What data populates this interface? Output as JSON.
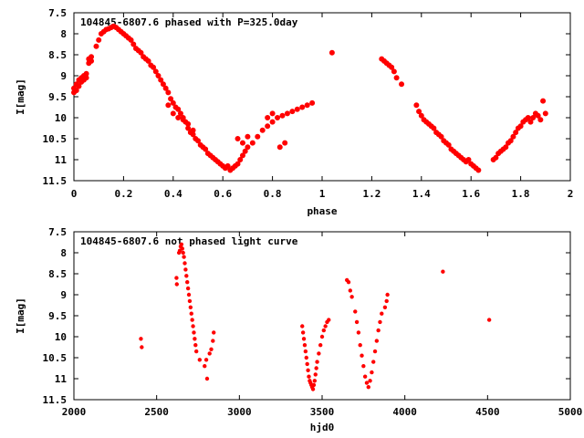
{
  "chart_data": [
    {
      "type": "scatter",
      "title": "104845-6807.6 phased with P=325.0day",
      "xlabel": "phase",
      "ylabel": "I[mag]",
      "xlim": [
        0,
        2
      ],
      "ylim": [
        7.5,
        11.5
      ],
      "y_inverted": true,
      "xticks": [
        "0",
        "0.2",
        "0.4",
        "0.6",
        "0.8",
        "1",
        "1.2",
        "1.4",
        "1.6",
        "1.8",
        "2"
      ],
      "yticks": [
        "7.5",
        "8",
        "8.5",
        "9",
        "9.5",
        "10",
        "10.5",
        "11",
        "11.5"
      ],
      "marker_color": "#ff0000",
      "points": [
        [
          0.0,
          9.4
        ],
        [
          0.0,
          9.3
        ],
        [
          0.01,
          9.2
        ],
        [
          0.01,
          9.35
        ],
        [
          0.02,
          9.1
        ],
        [
          0.02,
          9.25
        ],
        [
          0.03,
          9.05
        ],
        [
          0.03,
          9.15
        ],
        [
          0.04,
          9.0
        ],
        [
          0.04,
          9.1
        ],
        [
          0.05,
          8.95
        ],
        [
          0.05,
          9.05
        ],
        [
          0.06,
          8.7
        ],
        [
          0.06,
          8.6
        ],
        [
          0.07,
          8.55
        ],
        [
          0.07,
          8.65
        ],
        [
          0.09,
          8.3
        ],
        [
          0.1,
          8.15
        ],
        [
          0.11,
          8.0
        ],
        [
          0.12,
          7.95
        ],
        [
          0.13,
          7.9
        ],
        [
          0.14,
          7.88
        ],
        [
          0.15,
          7.85
        ],
        [
          0.16,
          7.82
        ],
        [
          0.17,
          7.85
        ],
        [
          0.18,
          7.9
        ],
        [
          0.19,
          7.95
        ],
        [
          0.2,
          8.0
        ],
        [
          0.21,
          8.05
        ],
        [
          0.22,
          8.1
        ],
        [
          0.23,
          8.15
        ],
        [
          0.24,
          8.25
        ],
        [
          0.25,
          8.35
        ],
        [
          0.26,
          8.4
        ],
        [
          0.27,
          8.45
        ],
        [
          0.28,
          8.55
        ],
        [
          0.29,
          8.6
        ],
        [
          0.3,
          8.65
        ],
        [
          0.31,
          8.75
        ],
        [
          0.32,
          8.8
        ],
        [
          0.33,
          8.9
        ],
        [
          0.34,
          9.0
        ],
        [
          0.35,
          9.1
        ],
        [
          0.36,
          9.2
        ],
        [
          0.37,
          9.3
        ],
        [
          0.38,
          9.4
        ],
        [
          0.39,
          9.55
        ],
        [
          0.4,
          9.65
        ],
        [
          0.41,
          9.75
        ],
        [
          0.42,
          9.8
        ],
        [
          0.43,
          9.9
        ],
        [
          0.44,
          10.0
        ],
        [
          0.45,
          10.1
        ],
        [
          0.46,
          10.25
        ],
        [
          0.47,
          10.35
        ],
        [
          0.48,
          10.4
        ],
        [
          0.49,
          10.5
        ],
        [
          0.5,
          10.55
        ],
        [
          0.51,
          10.65
        ],
        [
          0.52,
          10.7
        ],
        [
          0.53,
          10.75
        ],
        [
          0.54,
          10.85
        ],
        [
          0.55,
          10.9
        ],
        [
          0.56,
          10.95
        ],
        [
          0.57,
          11.0
        ],
        [
          0.58,
          11.05
        ],
        [
          0.59,
          11.1
        ],
        [
          0.6,
          11.15
        ],
        [
          0.61,
          11.2
        ],
        [
          0.62,
          11.15
        ],
        [
          0.63,
          11.25
        ],
        [
          0.64,
          11.2
        ],
        [
          0.65,
          11.15
        ],
        [
          0.66,
          11.1
        ],
        [
          0.67,
          11.0
        ],
        [
          0.68,
          10.9
        ],
        [
          0.69,
          10.8
        ],
        [
          0.7,
          10.7
        ],
        [
          0.72,
          10.6
        ],
        [
          0.74,
          10.45
        ],
        [
          0.76,
          10.3
        ],
        [
          0.78,
          10.2
        ],
        [
          0.8,
          10.1
        ],
        [
          0.82,
          10.0
        ],
        [
          0.84,
          9.95
        ],
        [
          0.86,
          9.9
        ],
        [
          0.88,
          9.85
        ],
        [
          0.9,
          9.8
        ],
        [
          0.92,
          9.75
        ],
        [
          0.94,
          9.7
        ],
        [
          0.96,
          9.65
        ],
        [
          0.38,
          9.7
        ],
        [
          0.4,
          9.9
        ],
        [
          0.42,
          10.0
        ],
        [
          0.44,
          10.05
        ],
        [
          0.46,
          10.15
        ],
        [
          0.48,
          10.3
        ],
        [
          0.66,
          10.5
        ],
        [
          0.68,
          10.6
        ],
        [
          0.7,
          10.45
        ],
        [
          0.78,
          10.0
        ],
        [
          0.8,
          9.9
        ],
        [
          0.83,
          10.7
        ],
        [
          0.85,
          10.6
        ],
        [
          1.04,
          8.45
        ],
        [
          1.24,
          8.6
        ],
        [
          1.25,
          8.65
        ],
        [
          1.26,
          8.7
        ],
        [
          1.27,
          8.75
        ],
        [
          1.28,
          8.8
        ],
        [
          1.29,
          8.9
        ],
        [
          1.3,
          9.05
        ],
        [
          1.32,
          9.2
        ],
        [
          1.38,
          9.7
        ],
        [
          1.39,
          9.85
        ],
        [
          1.4,
          9.95
        ],
        [
          1.41,
          10.05
        ],
        [
          1.42,
          10.1
        ],
        [
          1.43,
          10.15
        ],
        [
          1.44,
          10.2
        ],
        [
          1.45,
          10.25
        ],
        [
          1.46,
          10.35
        ],
        [
          1.47,
          10.4
        ],
        [
          1.48,
          10.45
        ],
        [
          1.49,
          10.55
        ],
        [
          1.5,
          10.6
        ],
        [
          1.51,
          10.65
        ],
        [
          1.52,
          10.75
        ],
        [
          1.53,
          10.8
        ],
        [
          1.54,
          10.85
        ],
        [
          1.55,
          10.9
        ],
        [
          1.56,
          10.95
        ],
        [
          1.57,
          11.0
        ],
        [
          1.58,
          11.05
        ],
        [
          1.59,
          11.0
        ],
        [
          1.6,
          11.1
        ],
        [
          1.61,
          11.15
        ],
        [
          1.62,
          11.2
        ],
        [
          1.63,
          11.25
        ],
        [
          1.69,
          11.0
        ],
        [
          1.7,
          10.95
        ],
        [
          1.71,
          10.85
        ],
        [
          1.72,
          10.8
        ],
        [
          1.73,
          10.75
        ],
        [
          1.74,
          10.7
        ],
        [
          1.75,
          10.6
        ],
        [
          1.76,
          10.55
        ],
        [
          1.77,
          10.45
        ],
        [
          1.78,
          10.35
        ],
        [
          1.79,
          10.25
        ],
        [
          1.8,
          10.2
        ],
        [
          1.81,
          10.1
        ],
        [
          1.82,
          10.05
        ],
        [
          1.83,
          10.0
        ],
        [
          1.84,
          10.1
        ],
        [
          1.85,
          10.0
        ],
        [
          1.86,
          9.9
        ],
        [
          1.87,
          9.95
        ],
        [
          1.88,
          10.05
        ],
        [
          1.89,
          9.6
        ],
        [
          1.9,
          9.9
        ]
      ]
    },
    {
      "type": "scatter",
      "title": "104845-6807.6 not phased light curve",
      "xlabel": "hjd0",
      "ylabel": "I[mag]",
      "xlim": [
        2000,
        5000
      ],
      "ylim": [
        7.5,
        11.5
      ],
      "y_inverted": true,
      "xticks": [
        "2000",
        "2500",
        "3000",
        "3500",
        "4000",
        "4500",
        "5000"
      ],
      "yticks": [
        "7.5",
        "8",
        "8.5",
        "9",
        "9.5",
        "10",
        "10.5",
        "11",
        "11.5"
      ],
      "marker_color": "#ff0000",
      "points": [
        [
          2405,
          10.05
        ],
        [
          2410,
          10.25
        ],
        [
          2620,
          8.6
        ],
        [
          2622,
          8.75
        ],
        [
          2635,
          8.0
        ],
        [
          2640,
          7.95
        ],
        [
          2645,
          7.85
        ],
        [
          2650,
          7.8
        ],
        [
          2655,
          7.9
        ],
        [
          2660,
          8.0
        ],
        [
          2665,
          8.1
        ],
        [
          2670,
          8.25
        ],
        [
          2675,
          8.4
        ],
        [
          2680,
          8.55
        ],
        [
          2685,
          8.7
        ],
        [
          2690,
          8.85
        ],
        [
          2695,
          9.0
        ],
        [
          2700,
          9.15
        ],
        [
          2705,
          9.3
        ],
        [
          2710,
          9.45
        ],
        [
          2715,
          9.6
        ],
        [
          2720,
          9.75
        ],
        [
          2725,
          9.9
        ],
        [
          2730,
          10.05
        ],
        [
          2735,
          10.2
        ],
        [
          2740,
          10.35
        ],
        [
          2760,
          10.55
        ],
        [
          2790,
          10.7
        ],
        [
          2800,
          10.55
        ],
        [
          2805,
          11.0
        ],
        [
          2820,
          10.4
        ],
        [
          2830,
          10.3
        ],
        [
          2840,
          10.1
        ],
        [
          2845,
          9.9
        ],
        [
          3380,
          9.75
        ],
        [
          3385,
          9.9
        ],
        [
          3390,
          10.05
        ],
        [
          3395,
          10.2
        ],
        [
          3400,
          10.35
        ],
        [
          3405,
          10.5
        ],
        [
          3410,
          10.65
        ],
        [
          3415,
          10.8
        ],
        [
          3420,
          10.95
        ],
        [
          3425,
          11.05
        ],
        [
          3430,
          11.1
        ],
        [
          3435,
          11.15
        ],
        [
          3440,
          11.2
        ],
        [
          3445,
          11.25
        ],
        [
          3450,
          11.15
        ],
        [
          3455,
          11.05
        ],
        [
          3460,
          10.9
        ],
        [
          3465,
          10.75
        ],
        [
          3470,
          10.6
        ],
        [
          3480,
          10.4
        ],
        [
          3490,
          10.2
        ],
        [
          3500,
          10.0
        ],
        [
          3510,
          9.85
        ],
        [
          3520,
          9.75
        ],
        [
          3530,
          9.65
        ],
        [
          3540,
          9.6
        ],
        [
          3650,
          8.65
        ],
        [
          3660,
          8.7
        ],
        [
          3670,
          8.9
        ],
        [
          3680,
          9.05
        ],
        [
          3700,
          9.4
        ],
        [
          3710,
          9.65
        ],
        [
          3720,
          9.9
        ],
        [
          3730,
          10.2
        ],
        [
          3740,
          10.45
        ],
        [
          3750,
          10.7
        ],
        [
          3760,
          10.95
        ],
        [
          3770,
          11.1
        ],
        [
          3780,
          11.2
        ],
        [
          3790,
          11.05
        ],
        [
          3800,
          10.85
        ],
        [
          3810,
          10.6
        ],
        [
          3820,
          10.35
        ],
        [
          3830,
          10.1
        ],
        [
          3840,
          9.85
        ],
        [
          3850,
          9.65
        ],
        [
          3860,
          9.45
        ],
        [
          3880,
          9.3
        ],
        [
          3890,
          9.15
        ],
        [
          3895,
          9.0
        ],
        [
          4230,
          8.45
        ],
        [
          4510,
          9.6
        ]
      ]
    }
  ]
}
